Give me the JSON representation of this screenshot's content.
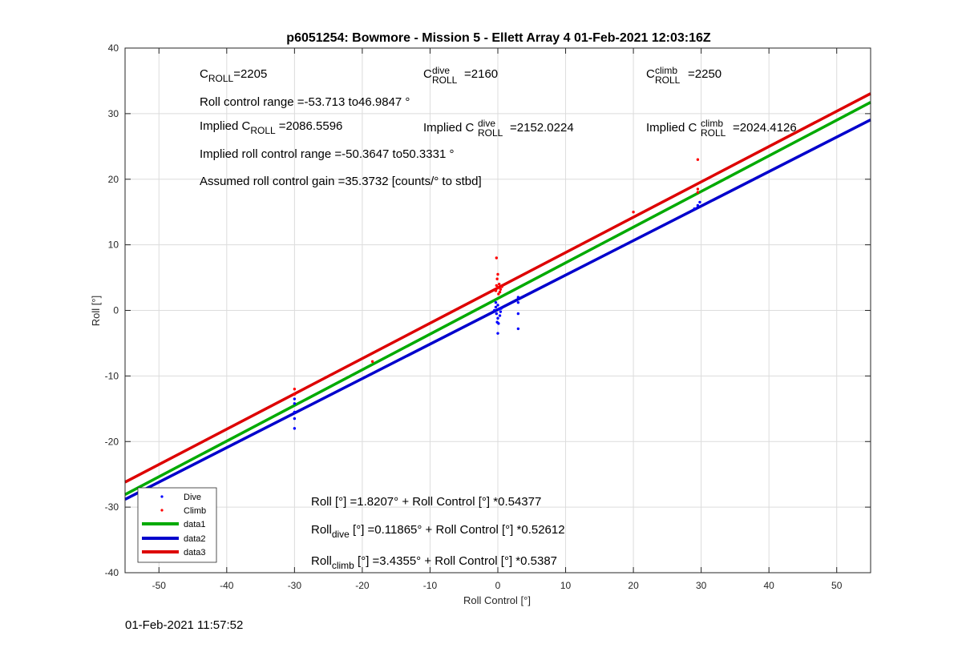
{
  "timestamp": "01-Feb-2021 11:57:52",
  "chart_data": {
    "type": "scatter",
    "title": "p6051254: Bowmore - Mission 5 - Ellett Array 4 01-Feb-2021 12:03:16Z",
    "xlabel": "Roll Control [°]",
    "ylabel": "Roll [°]",
    "xlim": [
      -55,
      55
    ],
    "ylim": [
      -40,
      40
    ],
    "xticks": [
      -50,
      -40,
      -30,
      -20,
      -10,
      0,
      10,
      20,
      30,
      40,
      50
    ],
    "yticks": [
      -40,
      -30,
      -20,
      -10,
      0,
      10,
      20,
      30,
      40
    ],
    "grid": true,
    "legend_position": "bottom-left",
    "scatter_series": [
      {
        "name": "Dive",
        "color": "#0000ff",
        "points": [
          [
            -30,
            -13.5
          ],
          [
            -30,
            -15.5
          ],
          [
            -30,
            -16.5
          ],
          [
            -30,
            -18
          ],
          [
            -30,
            -14.2
          ],
          [
            -0.3,
            0.5
          ],
          [
            -0.2,
            -0.5
          ],
          [
            0,
            -1.2
          ],
          [
            0.1,
            -2
          ],
          [
            0,
            -3.5
          ],
          [
            -0.3,
            1.2
          ],
          [
            0.2,
            0.2
          ],
          [
            0.5,
            0.3
          ],
          [
            -0.5,
            0
          ],
          [
            0.3,
            -0.8
          ],
          [
            0,
            0.8
          ],
          [
            -0.1,
            -1.8
          ],
          [
            0.4,
            -0.2
          ],
          [
            3,
            1.2
          ],
          [
            3,
            2
          ],
          [
            3,
            -0.5
          ],
          [
            3,
            -2.8
          ],
          [
            29,
            15.5
          ],
          [
            29.5,
            16
          ],
          [
            29.8,
            16.5
          ]
        ]
      },
      {
        "name": "Climb",
        "color": "#ff0000",
        "points": [
          [
            -30,
            -12
          ],
          [
            -30,
            -12.8
          ],
          [
            -18.5,
            -7.8
          ],
          [
            -0.2,
            8
          ],
          [
            0,
            5.5
          ],
          [
            -0.1,
            4.8
          ],
          [
            0.2,
            4
          ],
          [
            0,
            3.5
          ],
          [
            -0.3,
            3
          ],
          [
            0.3,
            2.8
          ],
          [
            0.1,
            2.5
          ],
          [
            -0.2,
            3.8
          ],
          [
            0.4,
            3.2
          ],
          [
            0.6,
            3.6
          ],
          [
            20,
            15
          ],
          [
            29.5,
            23
          ],
          [
            29.5,
            18.5
          ],
          [
            29.5,
            18
          ]
        ]
      }
    ],
    "line_series": [
      {
        "name": "data1",
        "color": "#00aa00",
        "intercept": 1.8207,
        "slope": 0.54377
      },
      {
        "name": "data2",
        "color": "#0000cc",
        "intercept": 0.11865,
        "slope": 0.52612
      },
      {
        "name": "data3",
        "color": "#dd0000",
        "intercept": 3.4355,
        "slope": 0.5387
      }
    ],
    "annotations": {
      "c_roll": {
        "base": "C",
        "sub": "ROLL",
        "val": "=2205"
      },
      "c_roll_dive": {
        "base": "C",
        "sub": "ROLL",
        "sup": "dive",
        "val": "=2160"
      },
      "c_roll_climb": {
        "base": "C",
        "sub": "ROLL",
        "sup": "climb",
        "val": "=2250"
      },
      "roll_control_range": "Roll control range =-53.713 to46.9847 °",
      "implied_c_roll": {
        "pre": "Implied C",
        "sub": "ROLL",
        "val": "=2086.5596"
      },
      "implied_c_roll_dive": {
        "pre": "Implied C",
        "sub": "ROLL",
        "sup": "dive",
        "val": "=2152.0224"
      },
      "implied_c_roll_climb": {
        "pre": "Implied C",
        "sub": "ROLL",
        "sup": "climb",
        "val": "=2024.4126"
      },
      "implied_roll_control_range": "Implied roll control range =-50.3647 to50.3331 °",
      "assumed_gain": "Assumed roll control gain =35.3732 [counts/° to stbd]",
      "eq_all": "Roll [°] =1.8207° + Roll Control [°] *0.54377",
      "eq_dive": {
        "pre": "Roll",
        "sub": "dive",
        "rest": " [°] =0.11865° + Roll Control [°] *0.52612"
      },
      "eq_climb": {
        "pre": "Roll",
        "sub": "climb",
        "rest": " [°] =3.4355° + Roll Control [°] *0.5387"
      }
    }
  }
}
